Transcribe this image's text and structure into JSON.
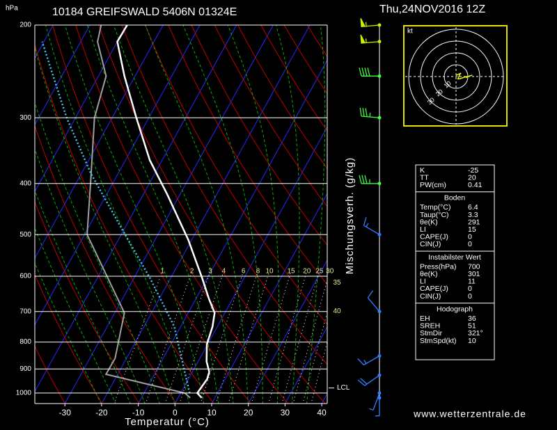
{
  "chart_data": {
    "type": "skewt",
    "title": "10184 GREIFSWALD 5406N 01324E",
    "date": "Thu,24NOV2016 12Z",
    "y_unit": "hPa",
    "xlabel": "Temperatur (°C)",
    "mixing_label": "Mischungsverh. (g/kg)",
    "source": "www.wetterzentrale.de",
    "log_y": true,
    "ylim": [
      1047,
      200
    ],
    "yticks": [
      200,
      300,
      400,
      500,
      600,
      700,
      800,
      900,
      1000
    ],
    "xlim": [
      -38.2,
      41.5
    ],
    "xticks": [
      -30,
      -20,
      -10,
      0,
      10,
      20,
      30,
      40
    ],
    "mixing_ratios": [
      1,
      2,
      3,
      4,
      6,
      8,
      10,
      15,
      20,
      25,
      30,
      35,
      40
    ],
    "lcl": {
      "label": "LCL",
      "pressure": 978
    },
    "series": [
      {
        "name": "Temperatur",
        "color": "#ffffff",
        "pressure": [
          1021,
          1000,
          941,
          912,
          871,
          808,
          748,
          704,
          663,
          605,
          512,
          420,
          361,
          300,
          250,
          215,
          200
        ],
        "values": [
          6.4,
          4.5,
          5.1,
          4.6,
          2.3,
          -0.2,
          -1.3,
          -2.8,
          -6.4,
          -11.4,
          -20.9,
          -33.4,
          -43.4,
          -53.4,
          -62.9,
          -70.0,
          -69.8
        ]
      },
      {
        "name": "Taupunkt",
        "color": "#a0a0a0",
        "pressure": [
          1021,
          1000,
          921,
          859,
          704,
          500,
          395,
          300,
          250,
          215,
          200
        ],
        "values": [
          3.3,
          1.1,
          -23.2,
          -23.1,
          -27.4,
          -49.3,
          -56.4,
          -64.8,
          -67.9,
          -75.4,
          -76.9
        ]
      },
      {
        "name": "Parcel",
        "color": "#40c8e8",
        "pressure": [
          1000,
          748,
          605,
          489,
          383,
          300,
          215
        ],
        "values": [
          2.4,
          -11.7,
          -25.6,
          -40.5,
          -57.4,
          -72.4,
          -90.5
        ]
      }
    ],
    "wind": {
      "pressure": [
        200,
        215,
        250,
        300,
        400,
        500,
        700,
        850,
        925,
        1000,
        1021
      ],
      "direction": [
        265,
        265,
        270,
        275,
        270,
        300,
        320,
        240,
        235,
        200,
        180
      ],
      "speed": [
        55,
        55,
        40,
        35,
        35,
        15,
        10,
        15,
        20,
        5,
        3
      ]
    },
    "hodograph": {
      "unit": "kt",
      "rings": [
        10,
        20,
        30,
        40
      ]
    },
    "indices": {
      "rows": [
        [
          "K",
          "-25"
        ],
        [
          "TT",
          "20"
        ],
        [
          "PW(cm)",
          "0.41"
        ]
      ],
      "sections": [
        {
          "title": "Boden",
          "rows": [
            [
              "Temp(°C)",
              "6.4"
            ],
            [
              "Taup(°C)",
              "3.3"
            ],
            [
              "θe(K)",
              "291"
            ],
            [
              "LI",
              "15"
            ],
            [
              "CAPE(J)",
              "0"
            ],
            [
              "CIN(J)",
              "0"
            ]
          ]
        },
        {
          "title": "Instabilster Wert",
          "rows": [
            [
              "Press(hPa)",
              "700"
            ],
            [
              "θe(K)",
              "301"
            ],
            [
              "LI",
              "11"
            ],
            [
              "CAPE(J)",
              "0"
            ],
            [
              "CIN(J)",
              "0"
            ]
          ]
        },
        {
          "title": "Hodograph",
          "rows": [
            [
              "EH",
              "36"
            ],
            [
              "SREH",
              "51"
            ],
            [
              "StmDir",
              "321°"
            ],
            [
              "StmSpd(kt)",
              "10"
            ]
          ]
        }
      ]
    }
  }
}
